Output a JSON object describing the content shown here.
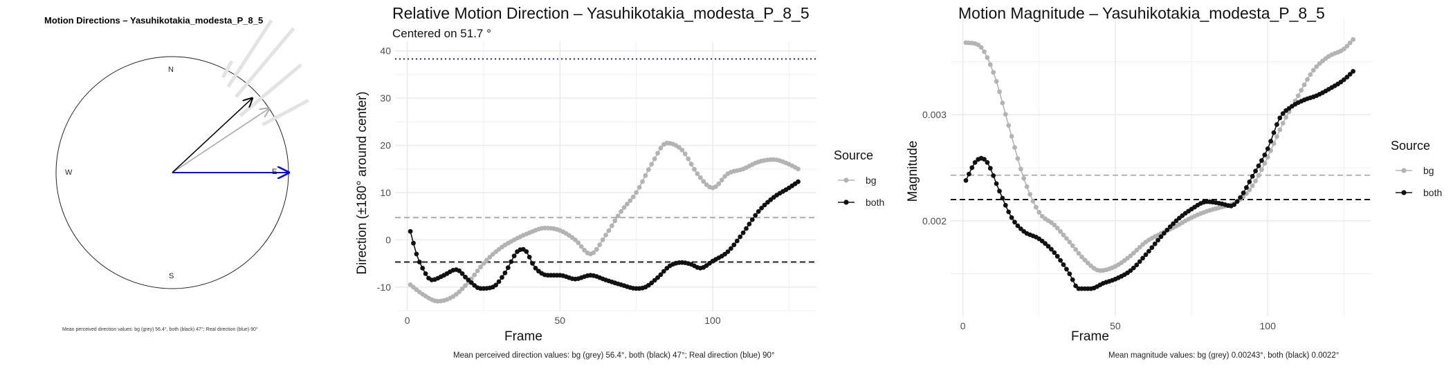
{
  "compass": {
    "title": "Motion Directions – Yasuhikotakia_modesta_P_8_5",
    "labels": {
      "n": "N",
      "e": "E",
      "s": "S",
      "w": "W"
    },
    "caption": "Mean perceived direction values: bg (grey) 56.4°, both (black) 47°; Real direction (blue) 90°",
    "arrows": [
      {
        "name": "bg",
        "direction_deg": 56.4,
        "color": "#aaaaaa"
      },
      {
        "name": "both",
        "direction_deg": 47,
        "color": "#000000"
      },
      {
        "name": "real",
        "direction_deg": 90,
        "color": "#0000ee"
      }
    ],
    "faint_rays_deg": [
      28,
      33,
      40,
      50,
      62
    ]
  },
  "legend": {
    "title": "Source",
    "bg": "bg",
    "both": "both"
  },
  "colors": {
    "bg": "#b3b3b3",
    "both": "#111111",
    "real": "#1a1aaa",
    "grid": "#ebebeb"
  },
  "chart_data": [
    {
      "type": "line",
      "title": "Relative Motion Direction – Yasuhikotakia_modesta_P_8_5",
      "subtitle": "Centered on  51.7 °",
      "xlabel": "Frame",
      "ylabel": "Direction (±180° around center)",
      "xlim": [
        -4,
        134
      ],
      "ylim": [
        -15,
        42
      ],
      "xticks": [
        0,
        50,
        100
      ],
      "yticks": [
        -10,
        0,
        10,
        20,
        30,
        40
      ],
      "n_frames": 128,
      "series": [
        {
          "name": "bg",
          "knots": [
            [
              1,
              -9.5
            ],
            [
              5,
              -11.5
            ],
            [
              10,
              -13
            ],
            [
              15,
              -12
            ],
            [
              20,
              -9
            ],
            [
              25,
              -5
            ],
            [
              30,
              -2
            ],
            [
              35,
              0
            ],
            [
              40,
              1.5
            ],
            [
              45,
              2.5
            ],
            [
              50,
              2
            ],
            [
              55,
              0
            ],
            [
              60,
              -3
            ],
            [
              65,
              1
            ],
            [
              70,
              6
            ],
            [
              75,
              10
            ],
            [
              80,
              16
            ],
            [
              85,
              20.5
            ],
            [
              90,
              19
            ],
            [
              95,
              14
            ],
            [
              100,
              11
            ],
            [
              105,
              14
            ],
            [
              110,
              15
            ],
            [
              115,
              16.5
            ],
            [
              120,
              17
            ],
            [
              125,
              16
            ],
            [
              128,
              15
            ]
          ]
        },
        {
          "name": "both",
          "knots": [
            [
              1,
              1.8
            ],
            [
              3,
              -3
            ],
            [
              5,
              -6
            ],
            [
              8,
              -8.5
            ],
            [
              12,
              -7.5
            ],
            [
              16,
              -6.3
            ],
            [
              20,
              -8.5
            ],
            [
              24,
              -10.3
            ],
            [
              28,
              -10
            ],
            [
              32,
              -7
            ],
            [
              36,
              -2.5
            ],
            [
              38,
              -2
            ],
            [
              42,
              -6
            ],
            [
              46,
              -7.5
            ],
            [
              50,
              -7.5
            ],
            [
              55,
              -8.3
            ],
            [
              60,
              -7.5
            ],
            [
              65,
              -8.5
            ],
            [
              70,
              -9.5
            ],
            [
              75,
              -10.3
            ],
            [
              78,
              -10
            ],
            [
              82,
              -8
            ],
            [
              86,
              -5.5
            ],
            [
              90,
              -4.8
            ],
            [
              93,
              -5.2
            ],
            [
              96,
              -6
            ],
            [
              100,
              -4.5
            ],
            [
              105,
              -2.5
            ],
            [
              110,
              1.5
            ],
            [
              115,
              6
            ],
            [
              120,
              9
            ],
            [
              125,
              11
            ],
            [
              128,
              12.3
            ]
          ]
        }
      ],
      "hlines": [
        {
          "name": "bg mean",
          "y": 4.7
        },
        {
          "name": "both mean",
          "y": -4.7
        },
        {
          "name": "real direction",
          "y": 38.3
        }
      ],
      "caption": "Mean perceived direction values: bg (grey) 56.4°, both (black) 47°; Real direction (blue) 90°"
    },
    {
      "type": "line",
      "title": "Motion Magnitude – Yasuhikotakia_modesta_P_8_5",
      "xlabel": "Frame",
      "ylabel": "Magnitude",
      "xlim": [
        -4,
        134
      ],
      "ylim": [
        0.0011,
        0.0039
      ],
      "xticks": [
        0,
        50,
        100
      ],
      "yticks": [
        0.002,
        0.003
      ],
      "ytick_labels": [
        "0.002",
        "0.003"
      ],
      "n_frames": 128,
      "series": [
        {
          "name": "bg",
          "knots": [
            [
              1,
              0.00368
            ],
            [
              5,
              0.00366
            ],
            [
              10,
              0.0034
            ],
            [
              15,
              0.0029
            ],
            [
              20,
              0.0024
            ],
            [
              25,
              0.00208
            ],
            [
              30,
              0.00196
            ],
            [
              35,
              0.0018
            ],
            [
              40,
              0.00163
            ],
            [
              45,
              0.00153
            ],
            [
              50,
              0.00157
            ],
            [
              55,
              0.00167
            ],
            [
              60,
              0.0018
            ],
            [
              65,
              0.00188
            ],
            [
              70,
              0.00195
            ],
            [
              75,
              0.00203
            ],
            [
              80,
              0.00209
            ],
            [
              85,
              0.00213
            ],
            [
              90,
              0.00218
            ],
            [
              95,
              0.00233
            ],
            [
              100,
              0.0026
            ],
            [
              105,
              0.00292
            ],
            [
              110,
              0.00318
            ],
            [
              115,
              0.00342
            ],
            [
              120,
              0.00355
            ],
            [
              125,
              0.00362
            ],
            [
              128,
              0.00371
            ]
          ]
        },
        {
          "name": "both",
          "knots": [
            [
              1,
              0.00238
            ],
            [
              4,
              0.00255
            ],
            [
              6,
              0.00259
            ],
            [
              8,
              0.00255
            ],
            [
              12,
              0.00228
            ],
            [
              16,
              0.00203
            ],
            [
              20,
              0.0019
            ],
            [
              25,
              0.00183
            ],
            [
              30,
              0.0017
            ],
            [
              35,
              0.0015
            ],
            [
              38,
              0.00136
            ],
            [
              42,
              0.00136
            ],
            [
              46,
              0.00141
            ],
            [
              50,
              0.00145
            ],
            [
              55,
              0.00153
            ],
            [
              60,
              0.00168
            ],
            [
              65,
              0.00185
            ],
            [
              70,
              0.002
            ],
            [
              75,
              0.00211
            ],
            [
              80,
              0.00218
            ],
            [
              85,
              0.00216
            ],
            [
              88,
              0.00214
            ],
            [
              91,
              0.00222
            ],
            [
              95,
              0.00242
            ],
            [
              100,
              0.00268
            ],
            [
              104,
              0.00297
            ],
            [
              108,
              0.00308
            ],
            [
              112,
              0.00314
            ],
            [
              116,
              0.00318
            ],
            [
              120,
              0.00324
            ],
            [
              125,
              0.00333
            ],
            [
              128,
              0.00341
            ]
          ]
        }
      ],
      "hlines": [
        {
          "name": "bg mean",
          "y": 0.00243
        },
        {
          "name": "both mean",
          "y": 0.0022
        }
      ],
      "caption": "Mean magnitude values: bg (grey) 0.00243°, both (black) 0.0022°"
    }
  ]
}
